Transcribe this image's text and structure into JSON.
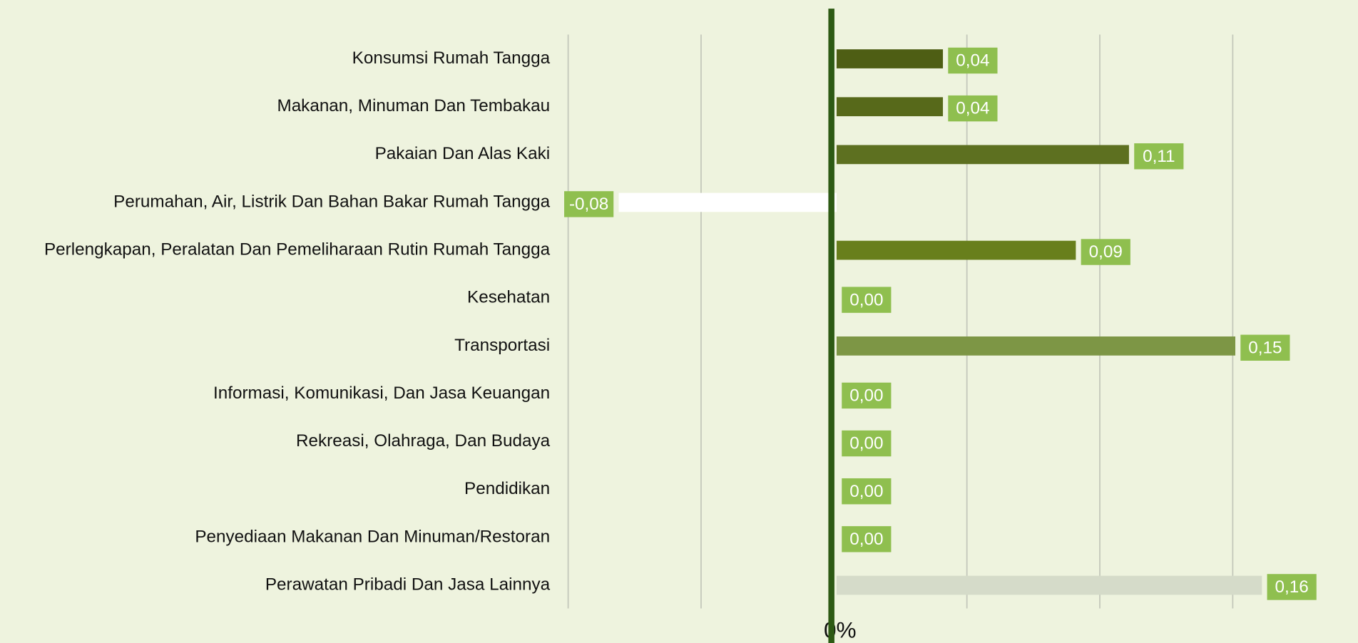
{
  "chart_data": {
    "type": "barh",
    "categories": [
      "Konsumsi Rumah Tangga",
      "Makanan, Minuman Dan Tembakau",
      "Pakaian Dan Alas Kaki",
      "Perumahan, Air, Listrik Dan Bahan Bakar Rumah Tangga",
      "Perlengkapan, Peralatan Dan Pemeliharaan Rutin Rumah Tangga",
      "Kesehatan",
      "Transportasi",
      "Informasi, Komunikasi, Dan Jasa Keuangan",
      "Rekreasi, Olahraga, Dan Budaya",
      "Pendidikan",
      "Penyediaan Makanan Dan Minuman/Restoran",
      "Perawatan Pribadi Dan Jasa Lainnya"
    ],
    "values": [
      0.04,
      0.04,
      0.11,
      -0.08,
      0.09,
      0.0,
      0.15,
      0.0,
      0.0,
      0.0,
      0.0,
      0.16
    ],
    "value_labels": [
      "0,04",
      "0,04",
      "0,11",
      "-0,08",
      "0,09",
      "0,00",
      "0,15",
      "0,00",
      "0,00",
      "0,00",
      "0,00",
      "0,16"
    ],
    "colors": [
      "#4e5e14",
      "#57691a",
      "#5d7020",
      "#ffffff",
      "#687f1c",
      "#6f8a24",
      "#7d9645",
      "#6f8a24",
      "#6f8a24",
      "#6f8a24",
      "#6f8a24",
      "#d5dbc9"
    ],
    "label_color": "#8fbf4f",
    "xlim": [
      -0.1,
      0.2
    ],
    "xticks": [
      -0.1,
      -0.05,
      {
        "value": 0,
        "label": "0%"
      },
      0.05,
      0.1,
      0.15
    ],
    "grid": true
  }
}
